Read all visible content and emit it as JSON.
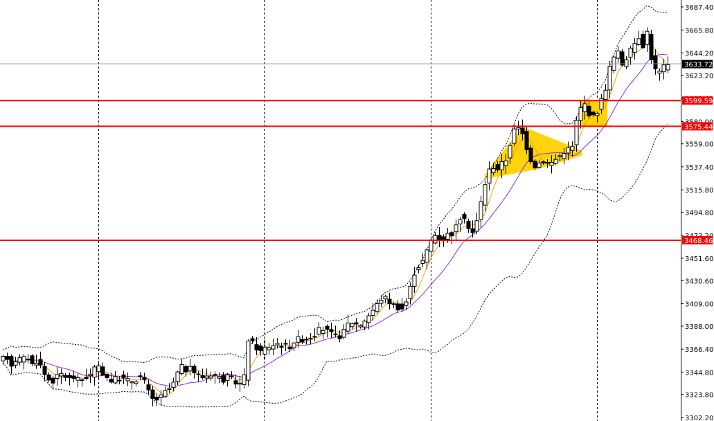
{
  "colors": {
    "background": "#ffffff",
    "candle_outline": "#000000",
    "bull_fill": "#ffffff",
    "bear_fill": "#000000",
    "level_line": "#ff0000",
    "pattern_fill": "#ffd200",
    "ma_fast": "#f5a000",
    "ma_slow": "#8a2be2",
    "band": "#000000",
    "current_line": "#8e9aa6"
  },
  "chart_data": {
    "type": "candlestick",
    "y_range": [
      3302.2,
      3687.4
    ],
    "y_ticks": [
      "3687.40",
      "3665.80",
      "3644.20",
      "3623.20",
      "3601.60",
      "3580.00",
      "3559.00",
      "3537.40",
      "3515.80",
      "3494.80",
      "3473.20",
      "3451.60",
      "3430.60",
      "3409.00",
      "3388.00",
      "3366.40",
      "3344.80",
      "3323.80",
      "3302.20"
    ],
    "current_price": "3633.72",
    "levels": [
      {
        "label": "3599.59",
        "value": 3599.59
      },
      {
        "label": "3575.44",
        "value": 3575.44
      },
      {
        "label": "3468.46",
        "value": 3468.46
      }
    ],
    "period_separators": [
      142,
      381,
      622,
      862
    ],
    "waypoints": [
      [
        0,
        3350
      ],
      [
        8,
        3356
      ],
      [
        15,
        3360
      ],
      [
        22,
        3352
      ],
      [
        30,
        3358
      ],
      [
        38,
        3356
      ],
      [
        45,
        3360
      ],
      [
        52,
        3352
      ],
      [
        58,
        3356
      ],
      [
        65,
        3350
      ],
      [
        72,
        3340
      ],
      [
        80,
        3336
      ],
      [
        88,
        3340
      ],
      [
        96,
        3344
      ],
      [
        104,
        3338
      ],
      [
        112,
        3340
      ],
      [
        120,
        3336
      ],
      [
        128,
        3340
      ],
      [
        136,
        3342
      ],
      [
        144,
        3350
      ],
      [
        152,
        3346
      ],
      [
        160,
        3340
      ],
      [
        168,
        3336
      ],
      [
        176,
        3340
      ],
      [
        184,
        3338
      ],
      [
        192,
        3336
      ],
      [
        200,
        3338
      ],
      [
        208,
        3340
      ],
      [
        216,
        3334
      ],
      [
        222,
        3322
      ],
      [
        228,
        3318
      ],
      [
        234,
        3320
      ],
      [
        240,
        3322
      ],
      [
        246,
        3328
      ],
      [
        252,
        3330
      ],
      [
        258,
        3336
      ],
      [
        264,
        3348
      ],
      [
        270,
        3350
      ],
      [
        276,
        3346
      ],
      [
        282,
        3348
      ],
      [
        290,
        3342
      ],
      [
        296,
        3340
      ],
      [
        304,
        3342
      ],
      [
        312,
        3344
      ],
      [
        320,
        3340
      ],
      [
        328,
        3338
      ],
      [
        336,
        3340
      ],
      [
        344,
        3336
      ],
      [
        352,
        3334
      ],
      [
        358,
        3340
      ],
      [
        364,
        3376
      ],
      [
        370,
        3372
      ],
      [
        376,
        3368
      ],
      [
        382,
        3364
      ],
      [
        390,
        3368
      ],
      [
        398,
        3370
      ],
      [
        406,
        3372
      ],
      [
        414,
        3370
      ],
      [
        422,
        3368
      ],
      [
        430,
        3374
      ],
      [
        438,
        3376
      ],
      [
        446,
        3376
      ],
      [
        454,
        3378
      ],
      [
        462,
        3382
      ],
      [
        470,
        3386
      ],
      [
        476,
        3384
      ],
      [
        484,
        3380
      ],
      [
        492,
        3378
      ],
      [
        500,
        3380
      ],
      [
        508,
        3390
      ],
      [
        516,
        3392
      ],
      [
        524,
        3388
      ],
      [
        532,
        3394
      ],
      [
        540,
        3400
      ],
      [
        548,
        3406
      ],
      [
        556,
        3414
      ],
      [
        564,
        3414
      ],
      [
        572,
        3408
      ],
      [
        580,
        3406
      ],
      [
        588,
        3404
      ],
      [
        596,
        3418
      ],
      [
        602,
        3436
      ],
      [
        608,
        3444
      ],
      [
        614,
        3446
      ],
      [
        620,
        3454
      ],
      [
        626,
        3466
      ],
      [
        632,
        3474
      ],
      [
        638,
        3472
      ],
      [
        644,
        3470
      ],
      [
        650,
        3474
      ],
      [
        656,
        3474
      ],
      [
        662,
        3478
      ],
      [
        670,
        3490
      ],
      [
        676,
        3486
      ],
      [
        682,
        3482
      ],
      [
        688,
        3476
      ],
      [
        694,
        3486
      ],
      [
        700,
        3504
      ],
      [
        706,
        3522
      ],
      [
        712,
        3534
      ],
      [
        718,
        3538
      ],
      [
        724,
        3536
      ],
      [
        730,
        3540
      ],
      [
        738,
        3546
      ],
      [
        744,
        3566
      ],
      [
        750,
        3574
      ],
      [
        758,
        3572
      ],
      [
        764,
        3560
      ],
      [
        770,
        3548
      ],
      [
        776,
        3538
      ],
      [
        782,
        3540
      ],
      [
        788,
        3544
      ],
      [
        794,
        3542
      ],
      [
        800,
        3540
      ],
      [
        806,
        3544
      ],
      [
        812,
        3546
      ],
      [
        818,
        3552
      ],
      [
        826,
        3554
      ],
      [
        832,
        3556
      ],
      [
        838,
        3580
      ],
      [
        844,
        3592
      ],
      [
        850,
        3596
      ],
      [
        856,
        3588
      ],
      [
        862,
        3584
      ],
      [
        868,
        3590
      ],
      [
        874,
        3600
      ],
      [
        880,
        3612
      ],
      [
        886,
        3630
      ],
      [
        892,
        3640
      ],
      [
        898,
        3644
      ],
      [
        904,
        3634
      ],
      [
        910,
        3640
      ],
      [
        916,
        3646
      ],
      [
        922,
        3654
      ],
      [
        928,
        3660
      ],
      [
        934,
        3652
      ],
      [
        940,
        3664
      ],
      [
        946,
        3640
      ],
      [
        952,
        3628
      ],
      [
        958,
        3626
      ],
      [
        966,
        3632
      ]
    ]
  }
}
